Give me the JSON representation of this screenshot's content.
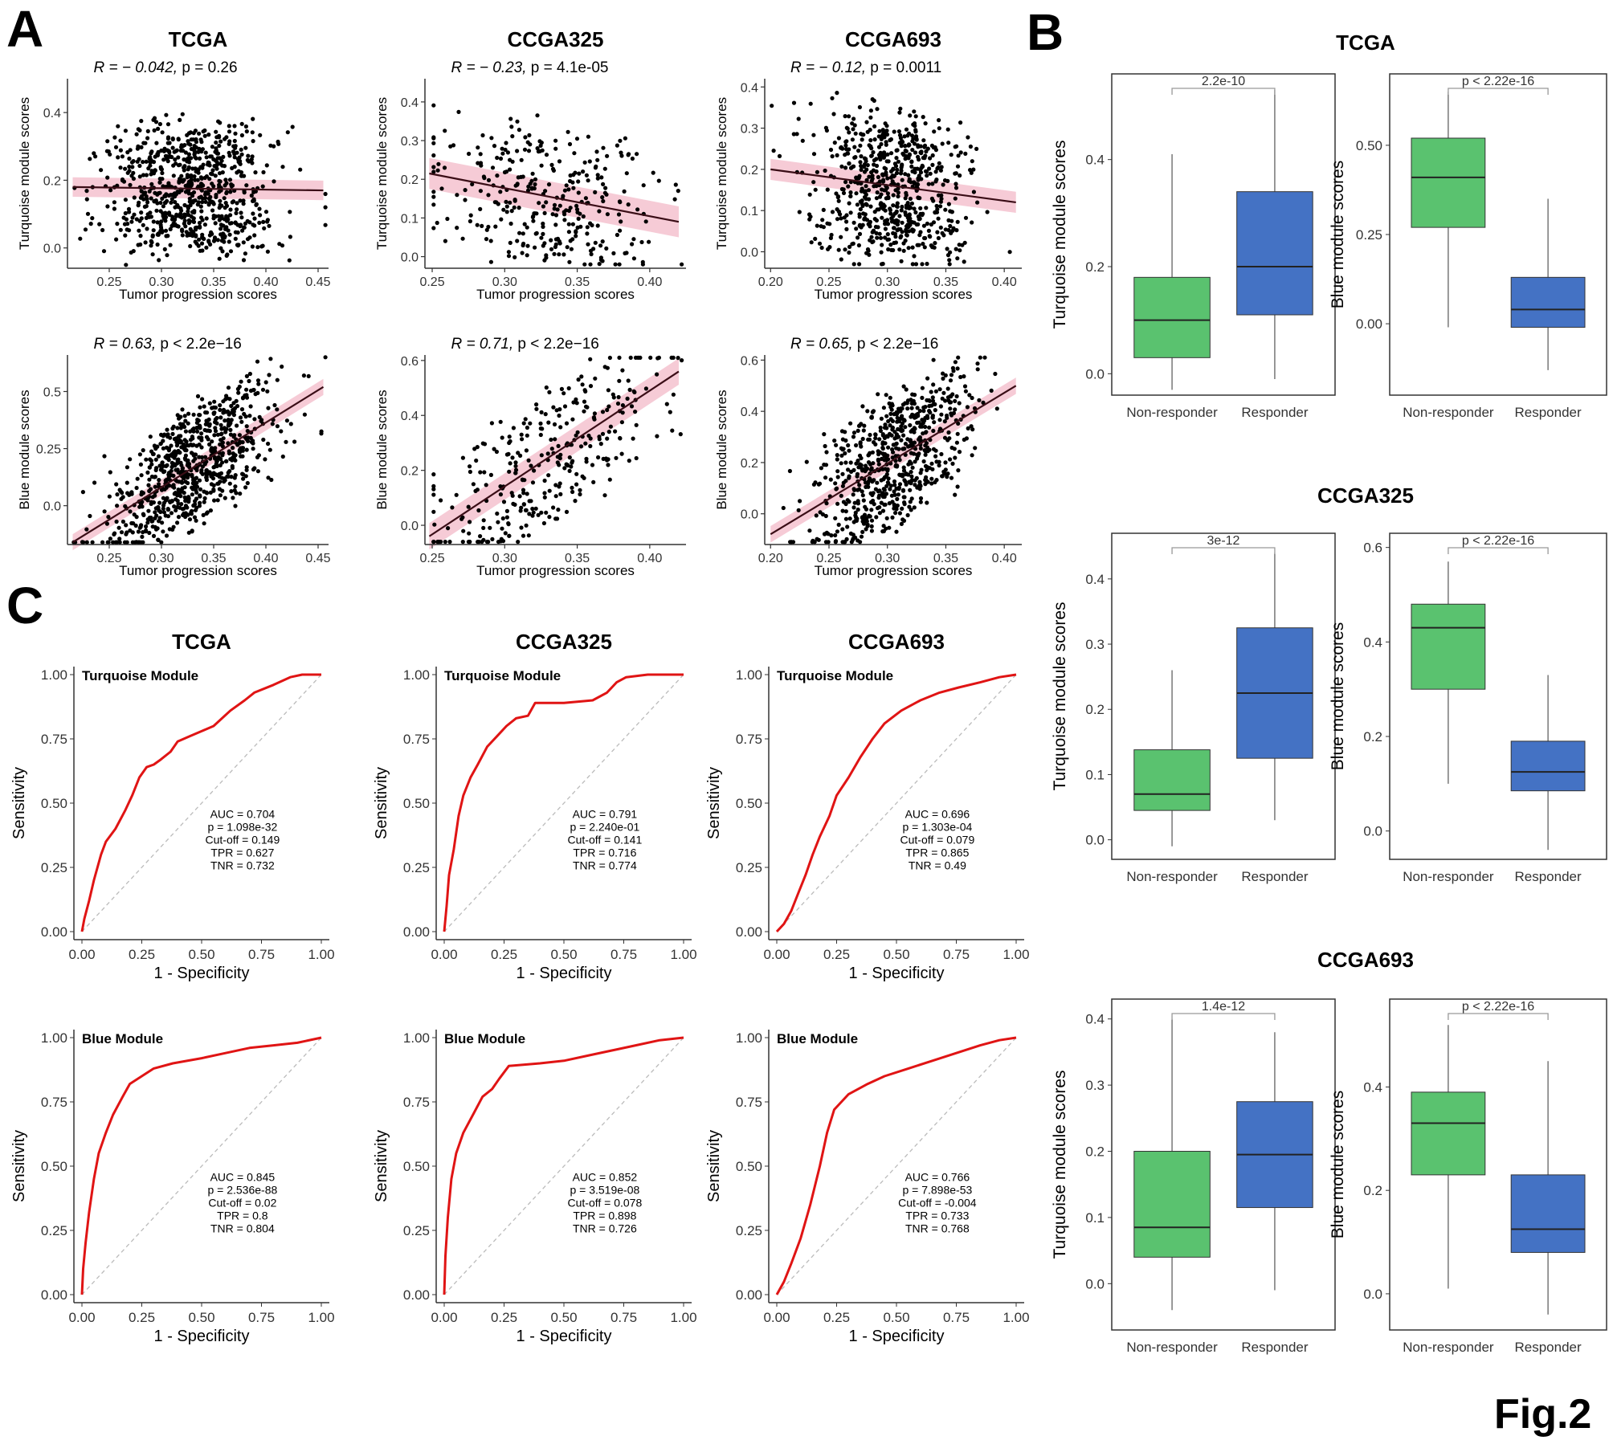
{
  "panel_labels": {
    "a": "A",
    "b": "B",
    "c": "C"
  },
  "figure_label": "Fig.2",
  "colors": {
    "point": "#000000",
    "fit_line": "#3a0d16",
    "ci_band": "#f4c2cf",
    "roc": "#e01414",
    "diag": "#bbbbbb",
    "non_responder": "#5ac26f",
    "responder": "#4472c4",
    "axis": "#333333"
  },
  "chart_data": [
    {
      "id": "A-TCGA-turq",
      "type": "scatter",
      "title": "TCGA",
      "stat": {
        "r": "R = − 0.042,",
        "p": "p = 0.26"
      },
      "xlabel": "Tumor progression scores",
      "ylabel": "Turquoise module scores",
      "xlim": [
        0.21,
        0.46
      ],
      "ylim": [
        -0.06,
        0.5
      ],
      "xticks": [
        0.25,
        0.3,
        0.35,
        0.4,
        0.45
      ],
      "yticks": [
        0,
        0.2,
        0.4
      ],
      "n": 780,
      "x_mean": 0.33,
      "x_sd": 0.04,
      "y_center": 0.18,
      "y_spread": 0.22,
      "fit": [
        [
          0.215,
          0.18
        ],
        [
          0.455,
          0.17
        ]
      ],
      "ci": 0.018,
      "seed": 11
    },
    {
      "id": "A-CCGA325-turq",
      "type": "scatter",
      "title": "CCGA325",
      "stat": {
        "r": "R = − 0.23,",
        "p": "p = 4.1e-05"
      },
      "xlabel": "Tumor progression scores",
      "ylabel": "Turquoise module scores",
      "xlim": [
        0.245,
        0.425
      ],
      "ylim": [
        -0.03,
        0.46
      ],
      "xticks": [
        0.25,
        0.3,
        0.35,
        0.4
      ],
      "yticks": [
        0,
        0.1,
        0.2,
        0.3,
        0.4
      ],
      "n": 320,
      "x_mean": 0.33,
      "x_sd": 0.037,
      "y_center": 0.14,
      "y_spread": 0.2,
      "fit": [
        [
          0.248,
          0.215
        ],
        [
          0.42,
          0.09
        ]
      ],
      "ci": 0.025,
      "seed": 23
    },
    {
      "id": "A-CCGA693-turq",
      "type": "scatter",
      "title": "CCGA693",
      "stat": {
        "r": "R = − 0.12,",
        "p": "p = 0.0011"
      },
      "xlabel": "Tumor progression scores",
      "ylabel": "Turquoise module scores",
      "xlim": [
        0.195,
        0.415
      ],
      "ylim": [
        -0.04,
        0.42
      ],
      "xticks": [
        0.2,
        0.25,
        0.3,
        0.35,
        0.4
      ],
      "yticks": [
        0,
        0.1,
        0.2,
        0.3,
        0.4
      ],
      "n": 690,
      "x_mean": 0.305,
      "x_sd": 0.033,
      "y_center": 0.17,
      "y_spread": 0.2,
      "fit": [
        [
          0.2,
          0.2
        ],
        [
          0.41,
          0.12
        ]
      ],
      "ci": 0.016,
      "seed": 37
    },
    {
      "id": "A-TCGA-blue",
      "type": "scatter",
      "title": "",
      "stat": {
        "r": "R = 0.63,",
        "p": "p < 2.2e−16"
      },
      "xlabel": "Tumor progression scores",
      "ylabel": "Blue module scores",
      "xlim": [
        0.21,
        0.46
      ],
      "ylim": [
        -0.17,
        0.66
      ],
      "xticks": [
        0.25,
        0.3,
        0.35,
        0.4,
        0.45
      ],
      "yticks": [
        0,
        0.25,
        0.5
      ],
      "n": 780,
      "x_mean": 0.33,
      "x_sd": 0.04,
      "y_center": 0.12,
      "y_spread": 0.3,
      "fit": [
        [
          0.215,
          -0.16
        ],
        [
          0.455,
          0.52
        ]
      ],
      "ci": 0.022,
      "seed": 51
    },
    {
      "id": "A-CCGA325-blue",
      "type": "scatter",
      "title": "",
      "stat": {
        "r": "R = 0.71,",
        "p": "p < 2.2e−16"
      },
      "xlabel": "Tumor progression scores",
      "ylabel": "Blue module scores",
      "xlim": [
        0.245,
        0.425
      ],
      "ylim": [
        -0.07,
        0.62
      ],
      "xticks": [
        0.25,
        0.3,
        0.35,
        0.4
      ],
      "yticks": [
        0,
        0.2,
        0.4,
        0.6
      ],
      "n": 320,
      "x_mean": 0.33,
      "x_sd": 0.037,
      "y_center": 0.3,
      "y_spread": 0.28,
      "fit": [
        [
          0.248,
          -0.04
        ],
        [
          0.42,
          0.56
        ]
      ],
      "ci": 0.03,
      "seed": 67
    },
    {
      "id": "A-CCGA693-blue",
      "type": "scatter",
      "title": "",
      "stat": {
        "r": "R = 0.65,",
        "p": "p < 2.2e−16"
      },
      "xlabel": "Tumor progression scores",
      "ylabel": "Blue module scores",
      "xlim": [
        0.195,
        0.415
      ],
      "ylim": [
        -0.12,
        0.62
      ],
      "xticks": [
        0.2,
        0.25,
        0.3,
        0.35,
        0.4
      ],
      "yticks": [
        0,
        0.2,
        0.4,
        0.6
      ],
      "n": 690,
      "x_mean": 0.305,
      "x_sd": 0.033,
      "y_center": 0.22,
      "y_spread": 0.28,
      "fit": [
        [
          0.2,
          -0.08
        ],
        [
          0.41,
          0.5
        ]
      ],
      "ci": 0.02,
      "seed": 79
    },
    {
      "id": "C-TCGA-turq",
      "type": "roc",
      "title": "TCGA",
      "module": "Turquoise Module",
      "stats": [
        "AUC = 0.704",
        "p = 1.098e-32",
        "Cut-off = 0.149",
        "TPR = 0.627",
        "TNR = 0.732"
      ],
      "xlabel": "1 - Specificity",
      "ylabel": "Sensitivity",
      "ticks": [
        "0.00",
        "0.25",
        "0.50",
        "0.75",
        "1.00"
      ],
      "curve": [
        [
          0,
          0
        ],
        [
          0.01,
          0.05
        ],
        [
          0.03,
          0.12
        ],
        [
          0.05,
          0.2
        ],
        [
          0.08,
          0.3
        ],
        [
          0.1,
          0.35
        ],
        [
          0.14,
          0.4
        ],
        [
          0.18,
          0.47
        ],
        [
          0.21,
          0.53
        ],
        [
          0.24,
          0.6
        ],
        [
          0.27,
          0.64
        ],
        [
          0.3,
          0.65
        ],
        [
          0.33,
          0.67
        ],
        [
          0.37,
          0.7
        ],
        [
          0.4,
          0.74
        ],
        [
          0.45,
          0.76
        ],
        [
          0.5,
          0.78
        ],
        [
          0.55,
          0.8
        ],
        [
          0.62,
          0.86
        ],
        [
          0.68,
          0.9
        ],
        [
          0.72,
          0.93
        ],
        [
          0.8,
          0.96
        ],
        [
          0.87,
          0.99
        ],
        [
          0.92,
          1
        ],
        [
          1,
          1
        ]
      ]
    },
    {
      "id": "C-CCGA325-turq",
      "type": "roc",
      "title": "CCGA325",
      "module": "Turquoise Module",
      "stats": [
        "AUC = 0.791",
        "p = 2.240e-01",
        "Cut-off = 0.141",
        "TPR = 0.716",
        "TNR = 0.774"
      ],
      "xlabel": "1 - Specificity",
      "ylabel": "Sensitivity",
      "ticks": [
        "0.00",
        "0.25",
        "0.50",
        "0.75",
        "1.00"
      ],
      "curve": [
        [
          0,
          0
        ],
        [
          0.01,
          0.1
        ],
        [
          0.02,
          0.22
        ],
        [
          0.04,
          0.32
        ],
        [
          0.06,
          0.45
        ],
        [
          0.08,
          0.53
        ],
        [
          0.11,
          0.6
        ],
        [
          0.14,
          0.65
        ],
        [
          0.18,
          0.72
        ],
        [
          0.22,
          0.76
        ],
        [
          0.26,
          0.8
        ],
        [
          0.3,
          0.83
        ],
        [
          0.35,
          0.84
        ],
        [
          0.38,
          0.89
        ],
        [
          0.5,
          0.89
        ],
        [
          0.62,
          0.9
        ],
        [
          0.68,
          0.93
        ],
        [
          0.72,
          0.97
        ],
        [
          0.76,
          0.99
        ],
        [
          0.85,
          1
        ],
        [
          1,
          1
        ]
      ]
    },
    {
      "id": "C-CCGA693-turq",
      "type": "roc",
      "title": "CCGA693",
      "module": "Turquoise Module",
      "stats": [
        "AUC = 0.696",
        "p = 1.303e-04",
        "Cut-off = 0.079",
        "TPR = 0.865",
        "TNR = 0.49"
      ],
      "xlabel": "1 - Specificity",
      "ylabel": "Sensitivity",
      "ticks": [
        "0.00",
        "0.25",
        "0.50",
        "0.75",
        "1.00"
      ],
      "curve": [
        [
          0,
          0
        ],
        [
          0.03,
          0.03
        ],
        [
          0.06,
          0.08
        ],
        [
          0.09,
          0.15
        ],
        [
          0.12,
          0.22
        ],
        [
          0.15,
          0.3
        ],
        [
          0.18,
          0.37
        ],
        [
          0.22,
          0.45
        ],
        [
          0.25,
          0.53
        ],
        [
          0.3,
          0.6
        ],
        [
          0.35,
          0.68
        ],
        [
          0.4,
          0.75
        ],
        [
          0.45,
          0.81
        ],
        [
          0.52,
          0.86
        ],
        [
          0.6,
          0.9
        ],
        [
          0.68,
          0.93
        ],
        [
          0.76,
          0.95
        ],
        [
          0.85,
          0.97
        ],
        [
          0.93,
          0.99
        ],
        [
          1,
          1
        ]
      ]
    },
    {
      "id": "C-TCGA-blue",
      "type": "roc",
      "title": "",
      "module": "Blue Module",
      "stats": [
        "AUC = 0.845",
        "p = 2.536e-88",
        "Cut-off = 0.02",
        "TPR = 0.8",
        "TNR = 0.804"
      ],
      "xlabel": "1 - Specificity",
      "ylabel": "Sensitivity",
      "ticks": [
        "0.00",
        "0.25",
        "0.50",
        "0.75",
        "1.00"
      ],
      "curve": [
        [
          0,
          0
        ],
        [
          0.005,
          0.1
        ],
        [
          0.015,
          0.2
        ],
        [
          0.03,
          0.32
        ],
        [
          0.05,
          0.45
        ],
        [
          0.07,
          0.55
        ],
        [
          0.1,
          0.63
        ],
        [
          0.13,
          0.7
        ],
        [
          0.17,
          0.77
        ],
        [
          0.2,
          0.82
        ],
        [
          0.25,
          0.85
        ],
        [
          0.3,
          0.88
        ],
        [
          0.38,
          0.9
        ],
        [
          0.5,
          0.92
        ],
        [
          0.6,
          0.94
        ],
        [
          0.7,
          0.96
        ],
        [
          0.8,
          0.97
        ],
        [
          0.9,
          0.98
        ],
        [
          1,
          1
        ]
      ]
    },
    {
      "id": "C-CCGA325-blue",
      "type": "roc",
      "title": "",
      "module": "Blue Module",
      "stats": [
        "AUC = 0.852",
        "p = 3.519e-08",
        "Cut-off = 0.078",
        "TPR = 0.898",
        "TNR = 0.726"
      ],
      "xlabel": "1 - Specificity",
      "ylabel": "Sensitivity",
      "ticks": [
        "0.00",
        "0.25",
        "0.50",
        "0.75",
        "1.00"
      ],
      "curve": [
        [
          0,
          0
        ],
        [
          0.005,
          0.15
        ],
        [
          0.015,
          0.3
        ],
        [
          0.03,
          0.45
        ],
        [
          0.05,
          0.55
        ],
        [
          0.08,
          0.63
        ],
        [
          0.12,
          0.7
        ],
        [
          0.16,
          0.77
        ],
        [
          0.2,
          0.8
        ],
        [
          0.23,
          0.84
        ],
        [
          0.27,
          0.89
        ],
        [
          0.4,
          0.9
        ],
        [
          0.5,
          0.91
        ],
        [
          0.6,
          0.93
        ],
        [
          0.7,
          0.95
        ],
        [
          0.8,
          0.97
        ],
        [
          0.9,
          0.99
        ],
        [
          1,
          1
        ]
      ]
    },
    {
      "id": "C-CCGA693-blue",
      "type": "roc",
      "title": "",
      "module": "Blue Module",
      "stats": [
        "AUC = 0.766",
        "p = 7.898e-53",
        "Cut-off = -0.004",
        "TPR = 0.733",
        "TNR = 0.768"
      ],
      "xlabel": "1 - Specificity",
      "ylabel": "Sensitivity",
      "ticks": [
        "0.00",
        "0.25",
        "0.50",
        "0.75",
        "1.00"
      ],
      "curve": [
        [
          0,
          0
        ],
        [
          0.03,
          0.05
        ],
        [
          0.06,
          0.12
        ],
        [
          0.1,
          0.22
        ],
        [
          0.14,
          0.35
        ],
        [
          0.18,
          0.5
        ],
        [
          0.21,
          0.63
        ],
        [
          0.24,
          0.72
        ],
        [
          0.3,
          0.78
        ],
        [
          0.38,
          0.82
        ],
        [
          0.45,
          0.85
        ],
        [
          0.55,
          0.88
        ],
        [
          0.65,
          0.91
        ],
        [
          0.75,
          0.94
        ],
        [
          0.85,
          0.97
        ],
        [
          0.93,
          0.99
        ],
        [
          1,
          1
        ]
      ]
    },
    {
      "id": "B-TCGA-turq",
      "type": "box",
      "dataset": "TCGA",
      "ylabel": "Turquoise module scores",
      "pval": "2.2e-10",
      "ylim": [
        -0.04,
        0.56
      ],
      "yticks": [
        "0.0",
        "0.2",
        "0.4"
      ],
      "ytick_values": [
        0,
        0.2,
        0.4
      ],
      "categories": [
        "Non-responder",
        "Responder"
      ],
      "boxes": [
        {
          "min": -0.03,
          "q1": 0.03,
          "median": 0.1,
          "q3": 0.18,
          "max": 0.41
        },
        {
          "min": -0.01,
          "q1": 0.11,
          "median": 0.2,
          "q3": 0.34,
          "max": 0.53
        }
      ]
    },
    {
      "id": "B-TCGA-blue",
      "type": "box",
      "dataset": "TCGA",
      "ylabel": "Blue module scores",
      "pval": "p < 2.22e-16",
      "ylim": [
        -0.2,
        0.7
      ],
      "yticks": [
        "0.00",
        "0.25",
        "0.50"
      ],
      "ytick_values": [
        0,
        0.25,
        0.5
      ],
      "categories": [
        "Non-responder",
        "Responder"
      ],
      "boxes": [
        {
          "min": -0.01,
          "q1": 0.27,
          "median": 0.41,
          "q3": 0.52,
          "max": 0.65
        },
        {
          "min": -0.13,
          "q1": -0.01,
          "median": 0.04,
          "q3": 0.13,
          "max": 0.35
        }
      ]
    },
    {
      "id": "B-CCGA325-turq",
      "type": "box",
      "dataset": "CCGA325",
      "ylabel": "Turquoise module scores",
      "pval": "3e-12",
      "ylim": [
        -0.03,
        0.47
      ],
      "yticks": [
        "0.0",
        "0.1",
        "0.2",
        "0.3",
        "0.4"
      ],
      "ytick_values": [
        0,
        0.1,
        0.2,
        0.3,
        0.4
      ],
      "categories": [
        "Non-responder",
        "Responder"
      ],
      "boxes": [
        {
          "min": -0.01,
          "q1": 0.045,
          "median": 0.07,
          "q3": 0.138,
          "max": 0.26
        },
        {
          "min": 0.03,
          "q1": 0.125,
          "median": 0.225,
          "q3": 0.325,
          "max": 0.44
        }
      ]
    },
    {
      "id": "B-CCGA325-blue",
      "type": "box",
      "dataset": "CCGA325",
      "ylabel": "Blue module scores",
      "pval": "p < 2.22e-16",
      "ylim": [
        -0.06,
        0.63
      ],
      "yticks": [
        "0.0",
        "0.2",
        "0.4",
        "0.6"
      ],
      "ytick_values": [
        0,
        0.2,
        0.4,
        0.6
      ],
      "categories": [
        "Non-responder",
        "Responder"
      ],
      "boxes": [
        {
          "min": 0.1,
          "q1": 0.3,
          "median": 0.43,
          "q3": 0.48,
          "max": 0.57
        },
        {
          "min": -0.04,
          "q1": 0.085,
          "median": 0.125,
          "q3": 0.19,
          "max": 0.33
        }
      ]
    },
    {
      "id": "B-CCGA693-turq",
      "type": "box",
      "dataset": "CCGA693",
      "ylabel": "Turquoise module scores",
      "pval": "1.4e-12",
      "ylim": [
        -0.07,
        0.43
      ],
      "yticks": [
        "0.0",
        "0.1",
        "0.2",
        "0.3",
        "0.4"
      ],
      "ytick_values": [
        0,
        0.1,
        0.2,
        0.3,
        0.4
      ],
      "categories": [
        "Non-responder",
        "Responder"
      ],
      "boxes": [
        {
          "min": -0.04,
          "q1": 0.04,
          "median": 0.085,
          "q3": 0.2,
          "max": 0.4
        },
        {
          "min": -0.01,
          "q1": 0.115,
          "median": 0.195,
          "q3": 0.275,
          "max": 0.38
        }
      ]
    },
    {
      "id": "B-CCGA693-blue",
      "type": "box",
      "dataset": "CCGA693",
      "ylabel": "Blue module scores",
      "pval": "p < 2.22e-16",
      "ylim": [
        -0.07,
        0.57
      ],
      "yticks": [
        "0.0",
        "0.2",
        "0.4"
      ],
      "ytick_values": [
        0,
        0.2,
        0.4
      ],
      "categories": [
        "Non-responder",
        "Responder"
      ],
      "boxes": [
        {
          "min": 0.01,
          "q1": 0.23,
          "median": 0.33,
          "q3": 0.39,
          "max": 0.52
        },
        {
          "min": -0.04,
          "q1": 0.08,
          "median": 0.125,
          "q3": 0.23,
          "max": 0.45
        }
      ]
    }
  ]
}
